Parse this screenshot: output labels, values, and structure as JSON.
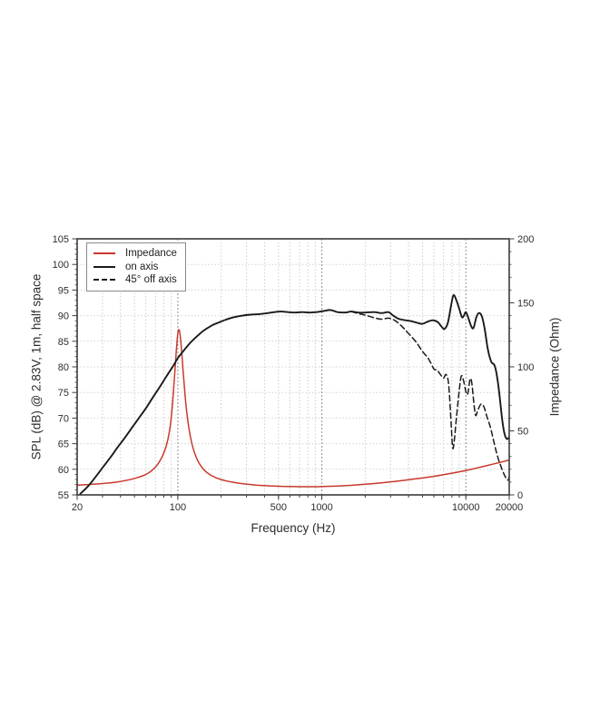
{
  "page": {
    "background": "#ffffff"
  },
  "chart": {
    "frame_color": "#3c3c3c",
    "curve_black": "#1a1a1a",
    "curve_red": "#c8392d",
    "grid_minor_color": "#c6c6c6",
    "grid_decade_color": "#9a9a9a",
    "grid_horizontal_color": "#cccccc",
    "text_color": "#2d2d2d",
    "axes": {
      "x": {
        "label": "Frequency (Hz)",
        "scale": "log",
        "min": 20,
        "max": 20000,
        "labeled_ticks": [
          20,
          100,
          500,
          1000,
          10000,
          20000
        ]
      },
      "y_left": {
        "label": "SPL (dB) @ 2.83V, 1m, half space",
        "min": 55,
        "max": 105,
        "ticks": [
          55,
          60,
          65,
          70,
          75,
          80,
          85,
          90,
          95,
          100,
          105
        ]
      },
      "y_right": {
        "label": "Impedance (Ohm)",
        "min": 0,
        "max": 200,
        "ticks": [
          0,
          50,
          100,
          150,
          200
        ]
      }
    },
    "legend": {
      "position": "upper-left",
      "items": [
        {
          "label": "Impedance",
          "color": "#c8392d",
          "style": "solid"
        },
        {
          "label": "on axis",
          "color": "#1a1a1a",
          "style": "solid"
        },
        {
          "label": "45° off axis",
          "color": "#1a1a1a",
          "style": "dashed"
        }
      ]
    }
  },
  "chart_data": {
    "type": "line",
    "title": "",
    "xlabel": "Frequency (Hz)",
    "ylabel_left": "SPL (dB) @ 2.83V, 1m, half space",
    "ylabel_right": "Impedance (Ohm)",
    "x_scale": "log",
    "xlim": [
      20,
      20000
    ],
    "ylim_left": [
      55,
      105
    ],
    "ylim_right": [
      0,
      200
    ],
    "grid": true,
    "legend_position": "upper-left",
    "series": [
      {
        "name": "Impedance",
        "axis": "right",
        "unit": "Ohm",
        "color": "#c8392d",
        "line_style": "solid",
        "points": [
          [
            20,
            7.6
          ],
          [
            24,
            8.1
          ],
          [
            28,
            8.6
          ],
          [
            33,
            9.3
          ],
          [
            38,
            10.1
          ],
          [
            43,
            11.1
          ],
          [
            48,
            12.3
          ],
          [
            54,
            14
          ],
          [
            60,
            16
          ],
          [
            66,
            19
          ],
          [
            72,
            23.5
          ],
          [
            78,
            30
          ],
          [
            83,
            38
          ],
          [
            87,
            48
          ],
          [
            90,
            60
          ],
          [
            93,
            79
          ],
          [
            96,
            101
          ],
          [
            98,
            115
          ],
          [
            100,
            126
          ],
          [
            102,
            129
          ],
          [
            104,
            124
          ],
          [
            107,
            108
          ],
          [
            110,
            90
          ],
          [
            114,
            70
          ],
          [
            118,
            56
          ],
          [
            123,
            44
          ],
          [
            128,
            36
          ],
          [
            134,
            29.5
          ],
          [
            141,
            24.5
          ],
          [
            150,
            20.3
          ],
          [
            160,
            17.3
          ],
          [
            172,
            15
          ],
          [
            186,
            13.2
          ],
          [
            200,
            12
          ],
          [
            220,
            10.8
          ],
          [
            245,
            9.8
          ],
          [
            275,
            8.9
          ],
          [
            310,
            8.2
          ],
          [
            350,
            7.6
          ],
          [
            400,
            7.2
          ],
          [
            460,
            6.9
          ],
          [
            530,
            6.7
          ],
          [
            620,
            6.5
          ],
          [
            730,
            6.4
          ],
          [
            860,
            6.4
          ],
          [
            1000,
            6.5
          ],
          [
            1200,
            6.8
          ],
          [
            1450,
            7.2
          ],
          [
            1750,
            7.8
          ],
          [
            2100,
            8.5
          ],
          [
            2600,
            9.4
          ],
          [
            3200,
            10.5
          ],
          [
            3900,
            11.7
          ],
          [
            4800,
            13
          ],
          [
            5900,
            14.4
          ],
          [
            7200,
            16
          ],
          [
            8800,
            17.8
          ],
          [
            10700,
            19.8
          ],
          [
            13000,
            22
          ],
          [
            15800,
            24.3
          ],
          [
            19000,
            26.6
          ],
          [
            20000,
            27.2
          ]
        ]
      },
      {
        "name": "on axis",
        "axis": "left",
        "unit": "dB SPL",
        "color": "#1a1a1a",
        "line_style": "solid",
        "points": [
          [
            21,
            55.2
          ],
          [
            24,
            56.8
          ],
          [
            27,
            58.6
          ],
          [
            30,
            60.3
          ],
          [
            34,
            62.3
          ],
          [
            38,
            64.2
          ],
          [
            43,
            66.2
          ],
          [
            48,
            68.1
          ],
          [
            54,
            70.1
          ],
          [
            60,
            71.9
          ],
          [
            67,
            74
          ],
          [
            75,
            76.1
          ],
          [
            84,
            78.3
          ],
          [
            93,
            80.2
          ],
          [
            100,
            81.7
          ],
          [
            110,
            83.2
          ],
          [
            122,
            84.7
          ],
          [
            135,
            85.9
          ],
          [
            150,
            87
          ],
          [
            170,
            88
          ],
          [
            190,
            88.6
          ],
          [
            215,
            89.2
          ],
          [
            245,
            89.7
          ],
          [
            280,
            90
          ],
          [
            320,
            90.2
          ],
          [
            370,
            90.3
          ],
          [
            420,
            90.5
          ],
          [
            470,
            90.7
          ],
          [
            520,
            90.8
          ],
          [
            580,
            90.7
          ],
          [
            650,
            90.6
          ],
          [
            730,
            90.7
          ],
          [
            820,
            90.6
          ],
          [
            920,
            90.7
          ],
          [
            1030,
            90.9
          ],
          [
            1150,
            91.1
          ],
          [
            1280,
            90.7
          ],
          [
            1450,
            90.6
          ],
          [
            1600,
            90.8
          ],
          [
            1800,
            90.6
          ],
          [
            2000,
            90.6
          ],
          [
            2300,
            90.7
          ],
          [
            2600,
            90.5
          ],
          [
            2900,
            90.7
          ],
          [
            3100,
            90.1
          ],
          [
            3400,
            89.4
          ],
          [
            3800,
            89.1
          ],
          [
            4200,
            88.9
          ],
          [
            4600,
            88.6
          ],
          [
            5000,
            88.4
          ],
          [
            5400,
            88.8
          ],
          [
            5900,
            89.1
          ],
          [
            6400,
            88.7
          ],
          [
            6800,
            87.8
          ],
          [
            7100,
            87.4
          ],
          [
            7500,
            88.6
          ],
          [
            7900,
            92
          ],
          [
            8200,
            94
          ],
          [
            8600,
            93
          ],
          [
            9000,
            91.3
          ],
          [
            9400,
            89.7
          ],
          [
            9700,
            90
          ],
          [
            10000,
            90.7
          ],
          [
            10400,
            89.6
          ],
          [
            10900,
            87.9
          ],
          [
            11300,
            87.6
          ],
          [
            11800,
            89.6
          ],
          [
            12300,
            90.5
          ],
          [
            12900,
            89.9
          ],
          [
            13500,
            87.5
          ],
          [
            14200,
            83.5
          ],
          [
            15000,
            81
          ],
          [
            15800,
            80.3
          ],
          [
            16500,
            78
          ],
          [
            17200,
            74
          ],
          [
            17900,
            69.5
          ],
          [
            18600,
            66.8
          ],
          [
            19300,
            65.9
          ],
          [
            20000,
            66.3
          ]
        ]
      },
      {
        "name": "45° off axis",
        "axis": "left",
        "unit": "dB SPL",
        "color": "#1a1a1a",
        "line_style": "dashed",
        "points": [
          [
            1600,
            90.8
          ],
          [
            1800,
            90.4
          ],
          [
            2000,
            90.1
          ],
          [
            2300,
            89.6
          ],
          [
            2600,
            89.3
          ],
          [
            2900,
            89.5
          ],
          [
            3200,
            89.1
          ],
          [
            3600,
            87.9
          ],
          [
            4000,
            86.5
          ],
          [
            4500,
            84.9
          ],
          [
            5000,
            83
          ],
          [
            5500,
            81.6
          ],
          [
            6000,
            79.6
          ],
          [
            6300,
            79.4
          ],
          [
            6700,
            78.4
          ],
          [
            7000,
            77.8
          ],
          [
            7300,
            78.5
          ],
          [
            7600,
            76.5
          ],
          [
            7900,
            69
          ],
          [
            8100,
            64.2
          ],
          [
            8300,
            65.5
          ],
          [
            8600,
            70
          ],
          [
            9000,
            75.5
          ],
          [
            9300,
            78.2
          ],
          [
            9600,
            77.5
          ],
          [
            10000,
            75.2
          ],
          [
            10300,
            74.7
          ],
          [
            10700,
            77.6
          ],
          [
            11000,
            76.8
          ],
          [
            11400,
            72.5
          ],
          [
            11700,
            70.5
          ],
          [
            12100,
            71.5
          ],
          [
            12700,
            72.7
          ],
          [
            13300,
            72.3
          ],
          [
            14000,
            70.3
          ],
          [
            14800,
            68.2
          ],
          [
            15700,
            65.2
          ],
          [
            16600,
            62.5
          ],
          [
            17500,
            60.6
          ],
          [
            18300,
            59.2
          ],
          [
            19100,
            58.2
          ],
          [
            19700,
            57.9
          ],
          [
            20000,
            58.6
          ]
        ]
      }
    ]
  }
}
